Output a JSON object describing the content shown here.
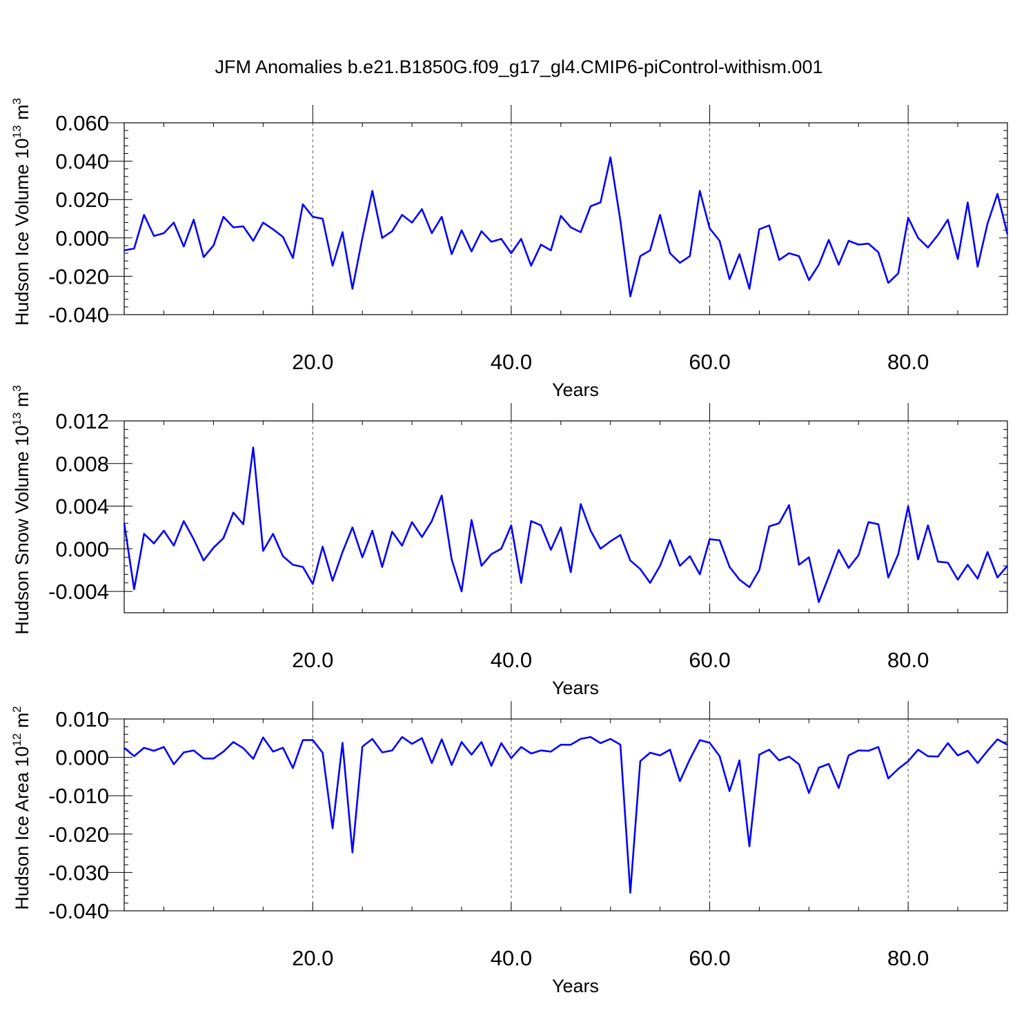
{
  "title": "JFM Anomalies b.e21.B1850G.f09_g17_gl4.CMIP6-piControl-withism.001",
  "colors": {
    "line": "#0000ff",
    "axis": "#000000",
    "grid": "#000000"
  },
  "chart_data": [
    {
      "type": "line",
      "xlabel": "Years",
      "ylabel_base": "Hudson Ice Volume 10",
      "ylabel_exp": "13",
      "ylabel_unit": " m",
      "ylabel_unit_exp": "3",
      "xlim": [
        1,
        90
      ],
      "ylim": [
        -0.04,
        0.06
      ],
      "xticks": [
        20,
        40,
        60,
        80
      ],
      "xtick_labels": [
        "20.0",
        "40.0",
        "60.0",
        "80.0"
      ],
      "yticks": [
        -0.04,
        -0.02,
        0.0,
        0.02,
        0.04,
        0.06
      ],
      "ytick_labels": [
        "-0.040",
        "-0.020",
        "0.000",
        "0.020",
        "0.040",
        "0.060"
      ],
      "grid": "vertical dashed at major x ticks",
      "x": [
        1,
        2,
        3,
        4,
        5,
        6,
        7,
        8,
        9,
        10,
        11,
        12,
        13,
        14,
        15,
        16,
        17,
        18,
        19,
        20,
        21,
        22,
        23,
        24,
        25,
        26,
        27,
        28,
        29,
        30,
        31,
        32,
        33,
        34,
        35,
        36,
        37,
        38,
        39,
        40,
        41,
        42,
        43,
        44,
        45,
        46,
        47,
        48,
        49,
        50,
        51,
        52,
        53,
        54,
        55,
        56,
        57,
        58,
        59,
        60,
        61,
        62,
        63,
        64,
        65,
        66,
        67,
        68,
        69,
        70,
        71,
        72,
        73,
        74,
        75,
        76,
        77,
        78,
        79,
        80,
        81,
        82,
        83,
        84,
        85,
        86,
        87,
        88,
        89,
        90
      ],
      "values": [
        -0.0065,
        -0.0055,
        0.012,
        0.001,
        0.0025,
        0.008,
        -0.0045,
        0.0095,
        -0.01,
        -0.004,
        0.011,
        0.0055,
        0.006,
        -0.0015,
        0.008,
        0.0045,
        0.0005,
        -0.0105,
        0.0175,
        0.011,
        0.01,
        -0.0145,
        0.003,
        -0.0265,
        0.0,
        0.0245,
        0.0,
        0.0035,
        0.012,
        0.008,
        0.015,
        0.0025,
        0.011,
        -0.0085,
        0.004,
        -0.007,
        0.0035,
        -0.002,
        -0.0005,
        -0.008,
        -0.0005,
        -0.0145,
        -0.0035,
        -0.0065,
        0.0115,
        0.0055,
        0.003,
        0.0165,
        0.0185,
        0.042,
        0.009,
        -0.0305,
        -0.0095,
        -0.0065,
        0.012,
        -0.008,
        -0.013,
        -0.0095,
        0.0245,
        0.005,
        -0.0015,
        -0.0215,
        -0.0085,
        -0.0265,
        0.0045,
        0.0065,
        -0.0115,
        -0.008,
        -0.0095,
        -0.022,
        -0.014,
        -0.001,
        -0.014,
        -0.0015,
        -0.0035,
        -0.003,
        -0.0075,
        -0.0235,
        -0.0185,
        0.0105,
        0.0,
        -0.005,
        0.0015,
        0.0095,
        -0.011,
        0.0185,
        -0.015,
        0.0075,
        0.023,
        0.002
      ]
    },
    {
      "type": "line",
      "xlabel": "Years",
      "ylabel_base": "Hudson Snow Volume 10",
      "ylabel_exp": "13",
      "ylabel_unit": " m",
      "ylabel_unit_exp": "3",
      "xlim": [
        1,
        90
      ],
      "ylim": [
        -0.006,
        0.012
      ],
      "xticks": [
        20,
        40,
        60,
        80
      ],
      "xtick_labels": [
        "20.0",
        "40.0",
        "60.0",
        "80.0"
      ],
      "yticks": [
        -0.004,
        0.0,
        0.004,
        0.008,
        0.012
      ],
      "ytick_labels": [
        "-0.004",
        "0.000",
        "0.004",
        "0.008",
        "0.012"
      ],
      "grid": "vertical dashed at major x ticks",
      "x": [
        1,
        2,
        3,
        4,
        5,
        6,
        7,
        8,
        9,
        10,
        11,
        12,
        13,
        14,
        15,
        16,
        17,
        18,
        19,
        20,
        21,
        22,
        23,
        24,
        25,
        26,
        27,
        28,
        29,
        30,
        31,
        32,
        33,
        34,
        35,
        36,
        37,
        38,
        39,
        40,
        41,
        42,
        43,
        44,
        45,
        46,
        47,
        48,
        49,
        50,
        51,
        52,
        53,
        54,
        55,
        56,
        57,
        58,
        59,
        60,
        61,
        62,
        63,
        64,
        65,
        66,
        67,
        68,
        69,
        70,
        71,
        72,
        73,
        74,
        75,
        76,
        77,
        78,
        79,
        80,
        81,
        82,
        83,
        84,
        85,
        86,
        87,
        88,
        89,
        90
      ],
      "values": [
        0.0024,
        -0.0038,
        0.0014,
        0.0005,
        0.0017,
        0.0003,
        0.0026,
        0.0009,
        -0.0011,
        0.0001,
        0.001,
        0.0034,
        0.0023,
        0.0095,
        -0.0002,
        0.0014,
        -0.0007,
        -0.0015,
        -0.0017,
        -0.0033,
        0.0002,
        -0.003,
        -0.0003,
        0.002,
        -0.0008,
        0.0017,
        -0.0017,
        0.0016,
        0.0003,
        0.0025,
        0.0011,
        0.0026,
        0.005,
        -0.001,
        -0.004,
        0.0027,
        -0.0016,
        -0.0005,
        0.0,
        0.0022,
        -0.0032,
        0.0026,
        0.0022,
        -0.0001,
        0.002,
        -0.0022,
        0.0042,
        0.0017,
        0.0,
        0.0007,
        0.0013,
        -0.0011,
        -0.0019,
        -0.0032,
        -0.0016,
        0.0008,
        -0.0016,
        -0.0007,
        -0.0024,
        0.0009,
        0.0008,
        -0.0017,
        -0.0029,
        -0.0036,
        -0.002,
        0.0021,
        0.0024,
        0.0041,
        -0.0015,
        -0.0008,
        -0.005,
        -0.0026,
        -0.0001,
        -0.0018,
        -0.0006,
        0.0025,
        0.0023,
        -0.0027,
        -0.0005,
        0.004,
        -0.001,
        0.0022,
        -0.0012,
        -0.0013,
        -0.0029,
        -0.0015,
        -0.0028,
        -0.0003,
        -0.0027,
        -0.0016
      ]
    },
    {
      "type": "line",
      "xlabel": "Years",
      "ylabel_base": "Hudson Ice Area 10",
      "ylabel_exp": "12",
      "ylabel_unit": " m",
      "ylabel_unit_exp": "2",
      "xlim": [
        1,
        90
      ],
      "ylim": [
        -0.04,
        0.01
      ],
      "xticks": [
        20,
        40,
        60,
        80
      ],
      "xtick_labels": [
        "20.0",
        "40.0",
        "60.0",
        "80.0"
      ],
      "yticks": [
        -0.04,
        -0.03,
        -0.02,
        -0.01,
        0.0,
        0.01
      ],
      "ytick_labels": [
        "-0.040",
        "-0.030",
        "-0.020",
        "-0.010",
        "0.000",
        "0.010"
      ],
      "grid": "vertical dashed at major x ticks",
      "x": [
        1,
        2,
        3,
        4,
        5,
        6,
        7,
        8,
        9,
        10,
        11,
        12,
        13,
        14,
        15,
        16,
        17,
        18,
        19,
        20,
        21,
        22,
        23,
        24,
        25,
        26,
        27,
        28,
        29,
        30,
        31,
        32,
        33,
        34,
        35,
        36,
        37,
        38,
        39,
        40,
        41,
        42,
        43,
        44,
        45,
        46,
        47,
        48,
        49,
        50,
        51,
        52,
        53,
        54,
        55,
        56,
        57,
        58,
        59,
        60,
        61,
        62,
        63,
        64,
        65,
        66,
        67,
        68,
        69,
        70,
        71,
        72,
        73,
        74,
        75,
        76,
        77,
        78,
        79,
        80,
        81,
        82,
        83,
        84,
        85,
        86,
        87,
        88,
        89,
        90
      ],
      "values": [
        0.0025,
        0.0003,
        0.0025,
        0.0017,
        0.0027,
        -0.0018,
        0.0013,
        0.0018,
        -0.0003,
        -0.0003,
        0.0015,
        0.004,
        0.0024,
        -0.0004,
        0.0052,
        0.0015,
        0.0025,
        -0.0028,
        0.0045,
        0.0045,
        0.0012,
        -0.0185,
        0.0038,
        -0.0248,
        0.0028,
        0.0048,
        0.0013,
        0.0018,
        0.0053,
        0.0035,
        0.005,
        -0.0015,
        0.0047,
        -0.002,
        0.004,
        0.0007,
        0.004,
        -0.0022,
        0.0037,
        -0.0002,
        0.0027,
        0.001,
        0.0018,
        0.0015,
        0.0033,
        0.0033,
        0.0048,
        0.0053,
        0.0037,
        0.0048,
        0.0033,
        -0.0353,
        -0.001,
        0.0012,
        0.0005,
        0.002,
        -0.0062,
        -0.0005,
        0.0045,
        0.0038,
        0.0003,
        -0.0088,
        -0.0008,
        -0.0232,
        0.0007,
        0.002,
        -0.0008,
        0.0002,
        -0.0018,
        -0.0093,
        -0.0027,
        -0.0017,
        -0.008,
        0.0005,
        0.0018,
        0.0017,
        0.0027,
        -0.0055,
        -0.003,
        -0.001,
        0.002,
        0.0003,
        0.0002,
        0.0037,
        0.0005,
        0.0017,
        -0.0015,
        0.0017,
        0.0047,
        0.0033
      ]
    }
  ]
}
